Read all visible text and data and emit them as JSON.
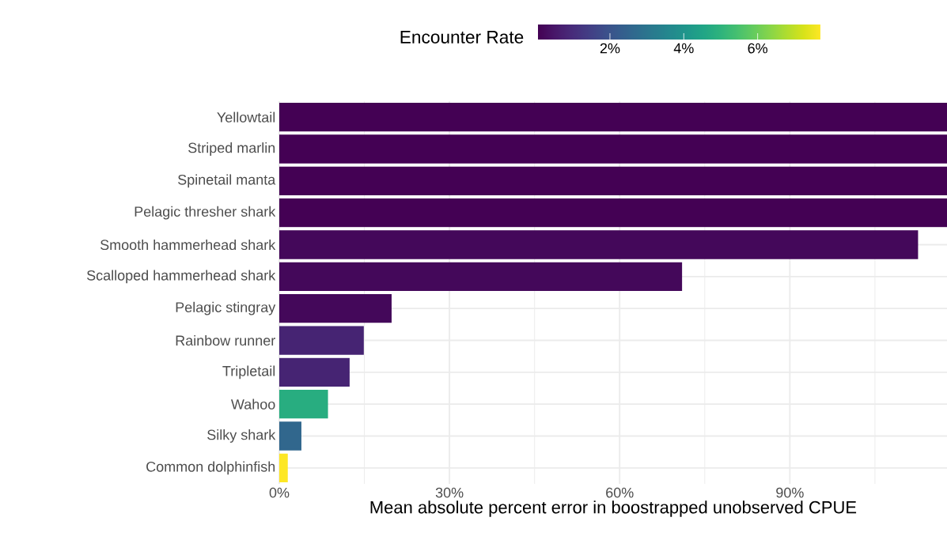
{
  "chart_data": {
    "type": "bar",
    "orientation": "horizontal",
    "categories": [
      "Yellowtail",
      "Striped marlin",
      "Spinetail manta",
      "Pelagic thresher shark",
      "Smooth hammerhead shark",
      "Scalloped hammerhead shark",
      "Pelagic stingray",
      "Rainbow runner",
      "Tripletail",
      "Wahoo",
      "Silky shark",
      "Common dolphinfish"
    ],
    "values": [
      117.7,
      117.7,
      117.7,
      117.7,
      112.6,
      71,
      19.8,
      14.9,
      12.4,
      8.6,
      3.9,
      1.5
    ],
    "cvalues": [
      0.05,
      0.05,
      0.05,
      0.05,
      0.2,
      0.2,
      0.2,
      0.8,
      0.8,
      4.8,
      2.6,
      7.7
    ],
    "clabel": "Encounter Rate",
    "clim": [
      0.05,
      7.7
    ],
    "cticks": [
      {
        "value": 2,
        "label": "2%"
      },
      {
        "value": 4,
        "label": "4%"
      },
      {
        "value": 6,
        "label": "6%"
      }
    ],
    "xlabel": "Mean absolute percent error in boostrapped unobserved CPUE",
    "xlim": [
      0,
      117.7
    ],
    "xticks": [
      {
        "value": 0,
        "label": "0%"
      },
      {
        "value": 30,
        "label": "30%"
      },
      {
        "value": 60,
        "label": "60%"
      },
      {
        "value": 90,
        "label": "90%"
      }
    ],
    "grid": true
  }
}
